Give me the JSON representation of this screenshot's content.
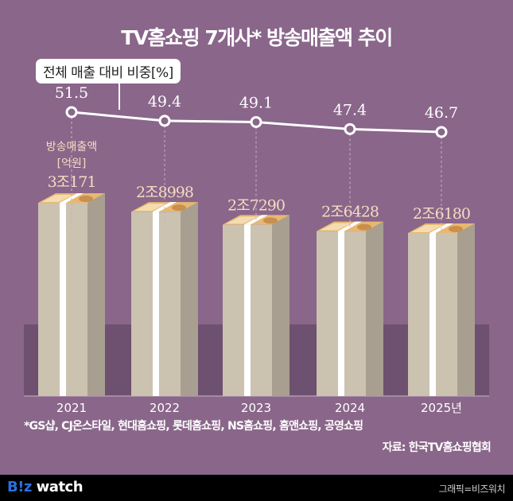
{
  "header": {
    "title": "TV홈쇼핑 7개사* 방송매출액 추이"
  },
  "chart_data": {
    "type": "bar",
    "title": "TV홈쇼핑 7개사* 방송매출액 추이",
    "categories": [
      "2021",
      "2022",
      "2023",
      "2024",
      "2025년"
    ],
    "bar_series": {
      "name": "방송매출액 [억원]",
      "unit_label_line1": "방송매출액",
      "unit_label_line2": "[억원]",
      "values": [
        30171,
        28998,
        27290,
        26428,
        26180
      ],
      "labels": [
        "3조171",
        "2조8998",
        "2조7290",
        "2조6428",
        "2조6180"
      ]
    },
    "line_series": {
      "name": "전체 매출 대비 비중[%]",
      "values": [
        51.5,
        49.4,
        49.1,
        47.4,
        46.7
      ],
      "labels": [
        "51.5",
        "49.4",
        "49.1",
        "47.4",
        "46.7"
      ]
    },
    "colors": {
      "background": "#89668a",
      "band": "#6e5070",
      "bar_front": "#cbc2b0",
      "bar_side": "#a89f90",
      "band_strip": "#ffffff",
      "money": "#e8b870",
      "line": "#ffffff",
      "label_bar": "#f5dcc0"
    }
  },
  "footnote": "*GS샵, CJ온스타일, 현대홈쇼핑, 롯데홈쇼핑, NS홈쇼핑, 홈앤쇼핑, 공영쇼핑",
  "source": "자료: 한국TV홈쇼핑협회",
  "footer": {
    "logo_b": "B!z",
    "logo_rest": " watch",
    "credit": "그래픽=비즈워치"
  }
}
